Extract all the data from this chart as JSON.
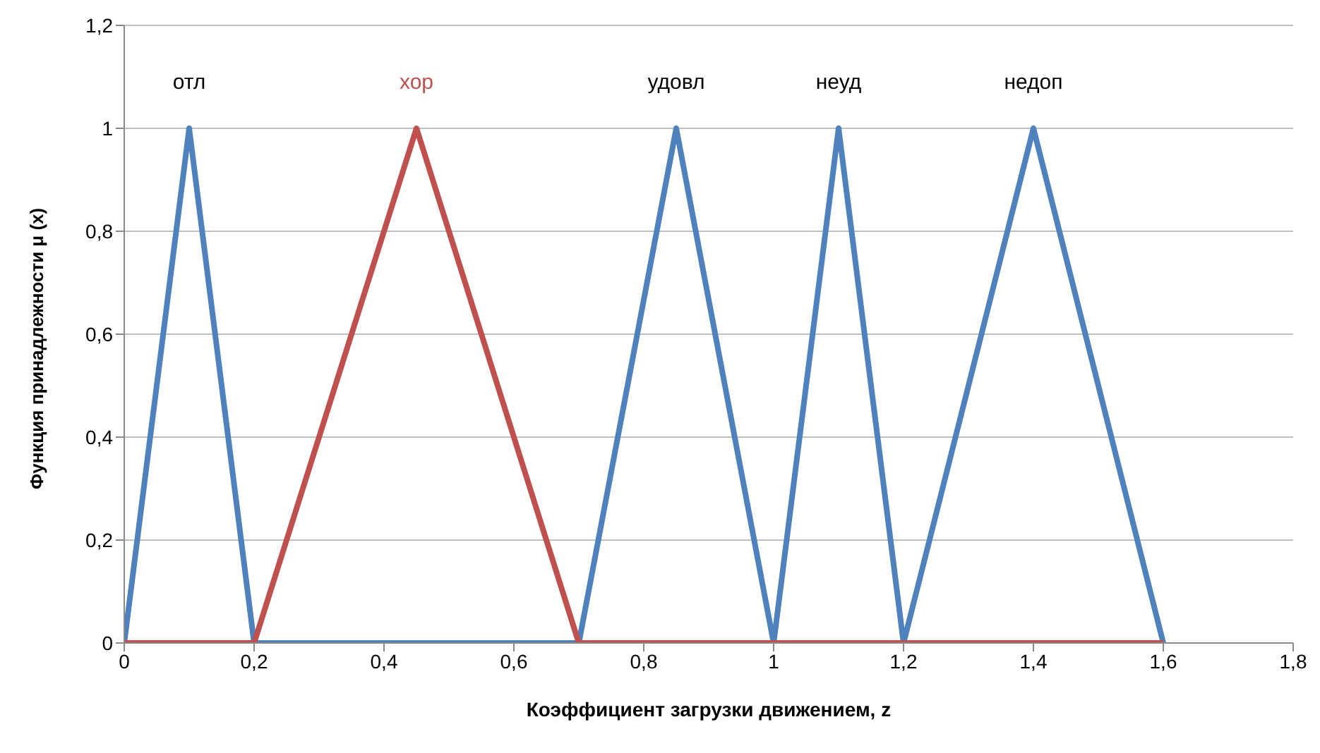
{
  "chart_data": {
    "type": "line",
    "xlabel": "Коэффициент загрузки движением, z",
    "ylabel": "Функция принадлежности μ (x)",
    "xlim": [
      0,
      1.8
    ],
    "xticks": [
      0,
      {
        "value": 0.2,
        "label": "0,2"
      },
      {
        "value": 0.4,
        "label": "0,4"
      },
      {
        "value": 0.6,
        "label": "0,6"
      },
      {
        "value": 0.8,
        "label": "0,8"
      },
      1,
      {
        "value": 1.2,
        "label": "1,2"
      },
      {
        "value": 1.4,
        "label": "1,4"
      },
      {
        "value": 1.6,
        "label": "1,6"
      },
      {
        "value": 1.8,
        "label": "1,8"
      }
    ],
    "ylim": [
      0,
      1.2
    ],
    "yticks": [
      0,
      {
        "value": 0.2,
        "label": "0,2"
      },
      {
        "value": 0.4,
        "label": "0,4"
      },
      {
        "value": 0.6,
        "label": "0,6"
      },
      {
        "value": 0.8,
        "label": "0,8"
      },
      1,
      {
        "value": 1.2,
        "label": "1,2"
      }
    ],
    "grid": "y",
    "marker": "none",
    "line_style": "solid",
    "series": [
      {
        "color": "#4f81bd",
        "x": [
          0,
          0.1,
          0.2,
          0.7,
          0.85,
          1,
          1.1,
          1.2,
          1.4,
          1.6
        ],
        "values": [
          0,
          1,
          0,
          0,
          1,
          0,
          1,
          0,
          1,
          0
        ]
      },
      {
        "color": "#c0504d",
        "x": [
          0,
          0.2,
          0.45,
          0.7,
          1.6
        ],
        "values": [
          0,
          0,
          1,
          0,
          0
        ]
      }
    ],
    "annotations": [
      "отл",
      "хор",
      "удовл",
      "неуд",
      "недоп"
    ]
  }
}
